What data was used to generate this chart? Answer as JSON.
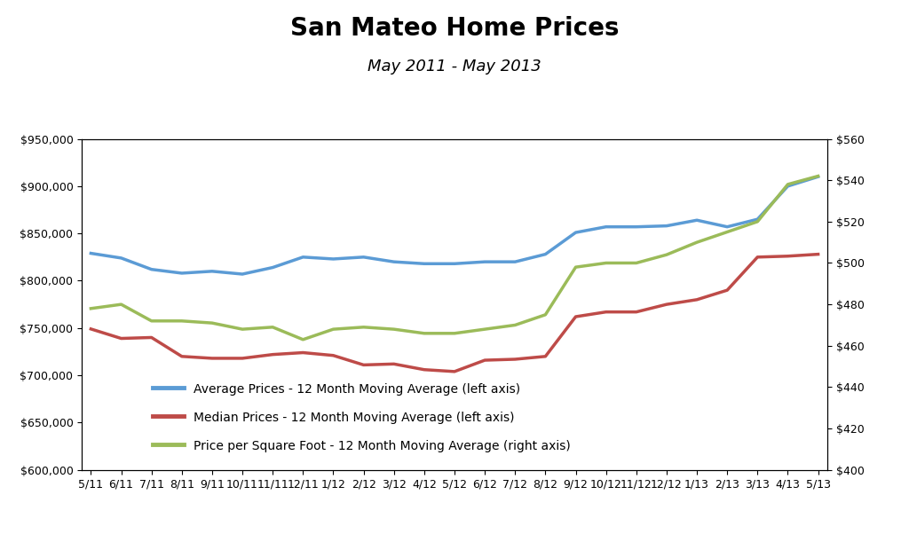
{
  "title": "San Mateo Home Prices",
  "subtitle": "May 2011 - May 2013",
  "x_labels": [
    "5/11",
    "6/11",
    "7/11",
    "8/11",
    "9/11",
    "10/11",
    "11/11",
    "12/11",
    "1/12",
    "2/12",
    "3/12",
    "4/12",
    "5/12",
    "6/12",
    "7/12",
    "8/12",
    "9/12",
    "10/12",
    "11/12",
    "12/12",
    "1/13",
    "2/13",
    "3/13",
    "4/13",
    "5/13"
  ],
  "avg_prices": [
    829000,
    824000,
    812000,
    808000,
    810000,
    807000,
    814000,
    825000,
    823000,
    825000,
    820000,
    818000,
    818000,
    820000,
    820000,
    828000,
    851000,
    857000,
    857000,
    858000,
    864000,
    857000,
    865000,
    900000,
    910000
  ],
  "median_prices": [
    749000,
    739000,
    740000,
    720000,
    718000,
    718000,
    722000,
    724000,
    721000,
    711000,
    712000,
    706000,
    704000,
    716000,
    717000,
    720000,
    762000,
    767000,
    767000,
    775000,
    780000,
    790000,
    825000,
    826000,
    828000
  ],
  "price_per_sqft": [
    478,
    480,
    472,
    472,
    471,
    468,
    469,
    463,
    468,
    469,
    468,
    466,
    466,
    468,
    470,
    475,
    498,
    500,
    500,
    504,
    510,
    515,
    520,
    538,
    542
  ],
  "left_ylim": [
    600000,
    950000
  ],
  "right_ylim": [
    400,
    560
  ],
  "left_yticks": [
    600000,
    650000,
    700000,
    750000,
    800000,
    850000,
    900000,
    950000
  ],
  "right_yticks": [
    400,
    420,
    440,
    460,
    480,
    500,
    520,
    540,
    560
  ],
  "avg_color": "#5B9BD5",
  "median_color": "#BE4B48",
  "sqft_color": "#9BBB59",
  "legend_avg": "Average Prices - 12 Month Moving Average (left axis)",
  "legend_median": "Median Prices - 12 Month Moving Average (left axis)",
  "legend_sqft": "Price per Square Foot - 12 Month Moving Average (right axis)",
  "bg_color": "#FFFFFF",
  "line_width": 2.5,
  "title_fontsize": 20,
  "subtitle_fontsize": 13,
  "tick_fontsize": 9,
  "legend_fontsize": 10
}
